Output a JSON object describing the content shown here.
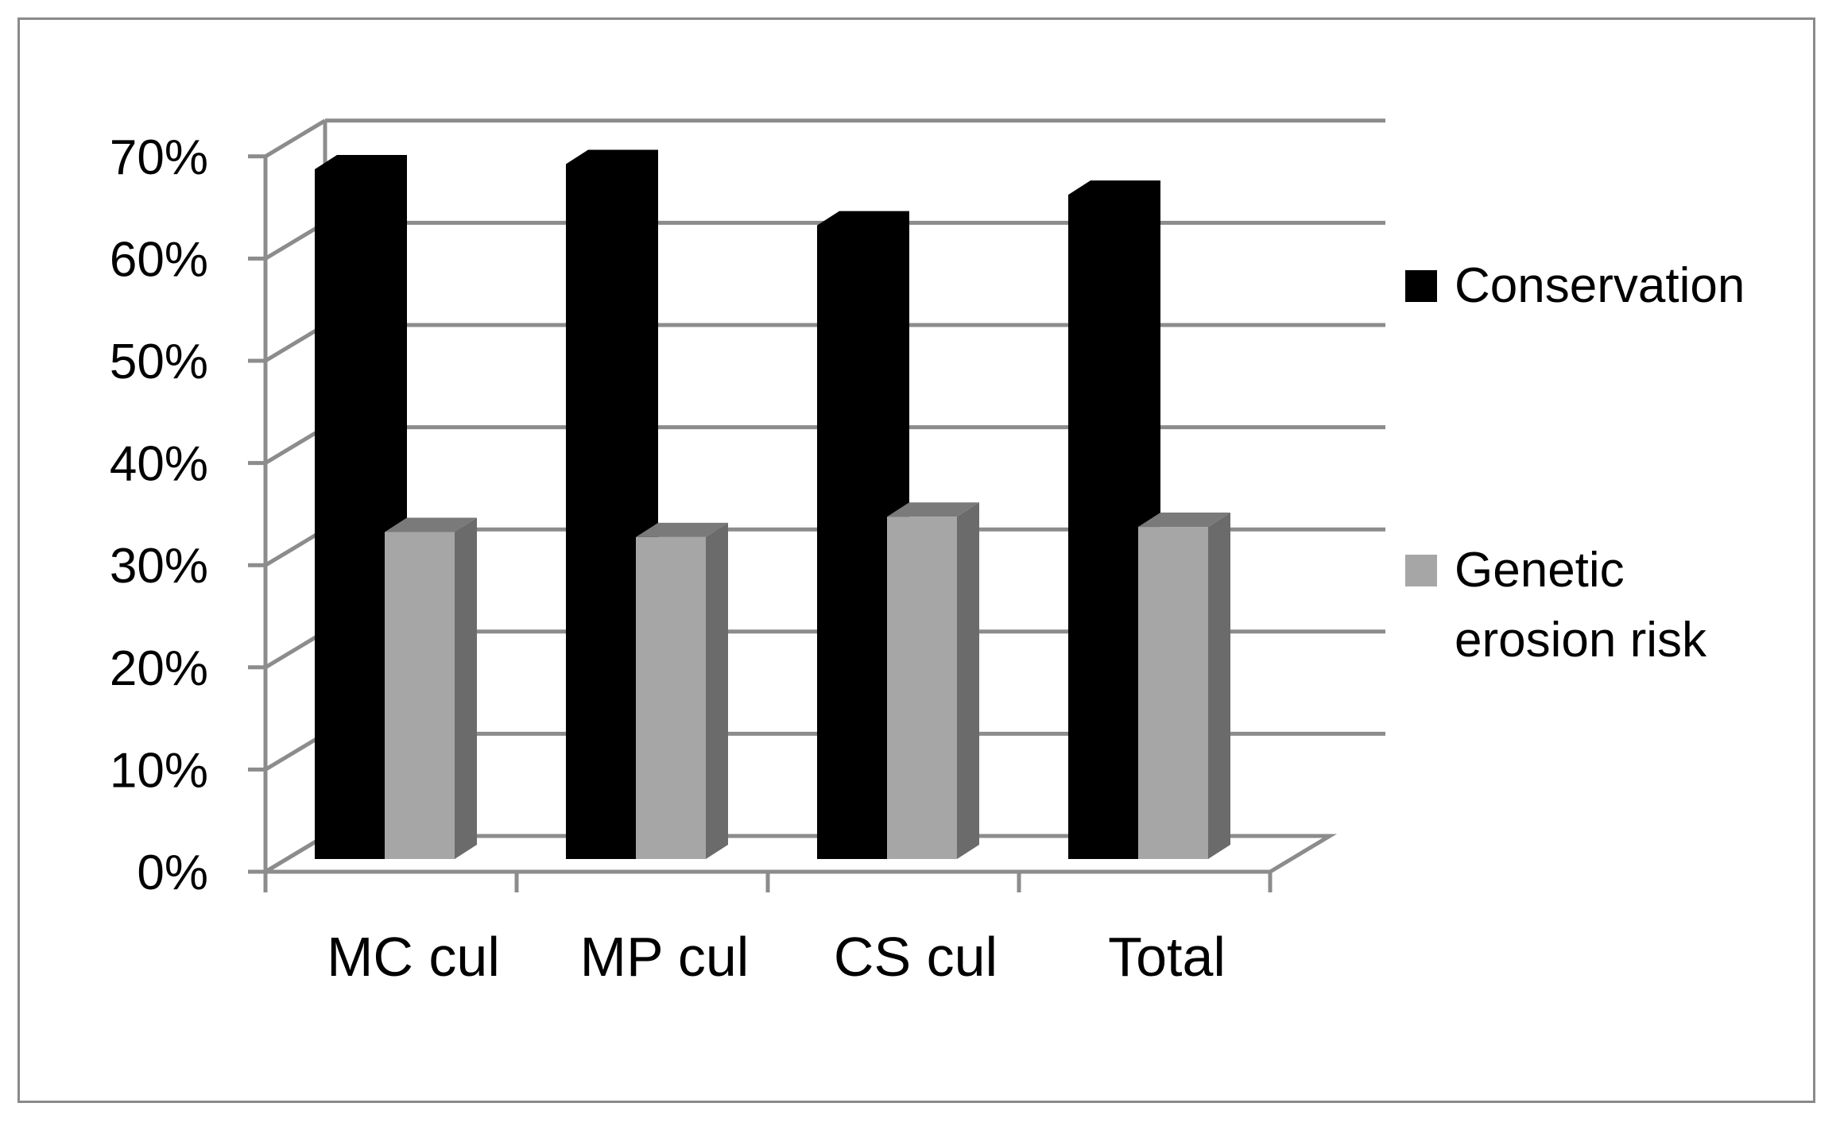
{
  "chart_data": {
    "type": "bar",
    "subtype": "3d-clustered-column",
    "title": "",
    "xlabel": "",
    "ylabel": "",
    "categories": [
      "MC cul",
      "MP cul",
      "CS cul",
      "Total"
    ],
    "series": [
      {
        "name": "Conservation",
        "values": [
          67.5,
          68.0,
          62.0,
          65.0
        ],
        "color": "#000000"
      },
      {
        "name": "Genetic erosion risk",
        "values": [
          32.0,
          31.5,
          33.5,
          32.5
        ],
        "color": "#a6a6a6"
      }
    ],
    "legend_lines": [
      [
        "Conservation"
      ],
      [
        "Genetic",
        "erosion risk"
      ]
    ],
    "yticks": [
      "0%",
      "10%",
      "20%",
      "30%",
      "40%",
      "50%",
      "60%",
      "70%"
    ],
    "ylim": [
      0,
      70
    ],
    "grid": true,
    "legend_position": "right"
  },
  "colors": {
    "gridline": "#8c8c8c",
    "axis": "#8c8c8c",
    "conservation": "#000000",
    "erosion_front": "#a6a6a6",
    "erosion_side": "#6b6b6b",
    "erosion_top": "#7a7a7a",
    "frame": "#8a8a8a"
  }
}
